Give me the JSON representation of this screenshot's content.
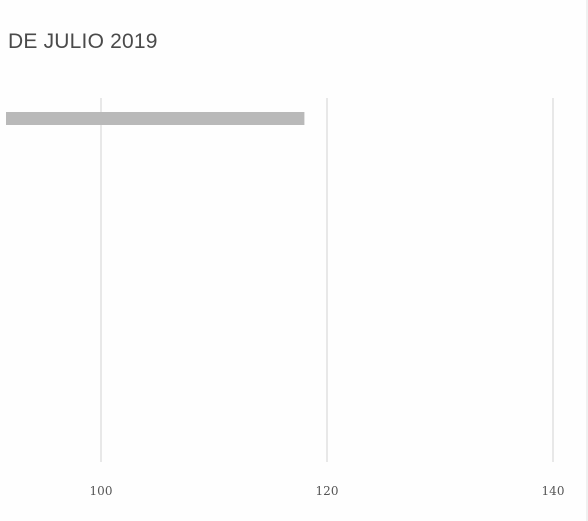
{
  "chart_data": {
    "type": "bar",
    "orientation": "horizontal",
    "title": "DE JULIO 2019",
    "x_ticks": [
      "100",
      "120",
      "140"
    ],
    "xlim_visible": [
      100,
      140
    ],
    "grid": true,
    "colors": {
      "bar": "#b9b9b9",
      "grid": "#d2d2d2",
      "text": "#4a4a4a"
    },
    "bars": [
      {
        "value": 118
      }
    ]
  }
}
